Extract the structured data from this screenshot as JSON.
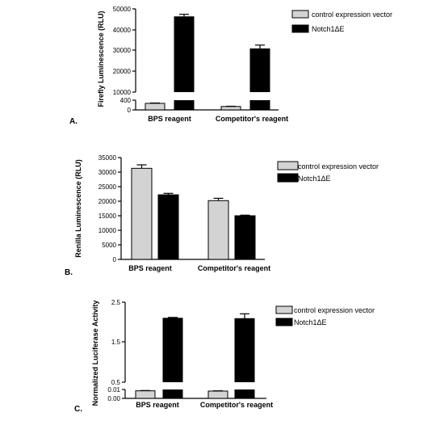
{
  "chart_data": [
    {
      "type": "bar",
      "panel_label": "A.",
      "ylabel": "Firefly Luminescence (RLU)",
      "categories": [
        "BPS reagent",
        "Competitor's reagent"
      ],
      "series": [
        {
          "name": "control expression vector",
          "color": "#d3d3d3",
          "values": [
            270,
            140
          ]
        },
        {
          "name": "Notch1ΔE",
          "color": "#000000",
          "values": [
            46200,
            30800
          ]
        }
      ],
      "errors": [
        [
          15,
          10
        ],
        [
          1200,
          1800
        ]
      ],
      "broken_axis": {
        "lower": {
          "range": [
            0,
            400
          ],
          "ticks": [
            "0",
            "400"
          ]
        },
        "upper": {
          "range": [
            10000,
            50000
          ],
          "ticks": [
            "10000",
            "20000",
            "30000",
            "40000",
            "50000"
          ]
        }
      },
      "legend_position": "top-right"
    },
    {
      "type": "bar",
      "panel_label": "B.",
      "ylabel": "Renilla Luminescence (RLU)",
      "categories": [
        "BPS reagent",
        "Competitor's reagent"
      ],
      "series": [
        {
          "name": "control expression vector",
          "color": "#d3d3d3",
          "values": [
            31300,
            20200
          ]
        },
        {
          "name": "Notch1ΔE",
          "color": "#000000",
          "values": [
            22200,
            15000
          ]
        }
      ],
      "errors": [
        [
          1200,
          800
        ],
        [
          500,
          200
        ]
      ],
      "ylim": [
        0,
        35000
      ],
      "ticks": [
        "0",
        "5000",
        "10000",
        "15000",
        "20000",
        "25000",
        "30000",
        "35000"
      ],
      "legend_position": "top-right"
    },
    {
      "type": "bar",
      "panel_label": "C.",
      "ylabel": "Normalized Luciferase Activity",
      "categories": [
        "BPS reagent",
        "Competitor's reagent"
      ],
      "series": [
        {
          "name": "control expression vector",
          "color": "#d3d3d3",
          "values": [
            0.0085,
            0.0082
          ]
        },
        {
          "name": "Notch1ΔE",
          "color": "#000000",
          "values": [
            2.1,
            2.09
          ]
        }
      ],
      "errors": [
        [
          0.0003,
          0.0003
        ],
        [
          0.02,
          0.12
        ]
      ],
      "broken_axis": {
        "lower": {
          "range": [
            0,
            0.01
          ],
          "ticks": [
            "0.00",
            "0.01"
          ]
        },
        "upper": {
          "range": [
            0.5,
            2.5
          ],
          "ticks": [
            "0.5",
            "1.5",
            "2.5"
          ]
        }
      },
      "legend_position": "top-right"
    }
  ]
}
